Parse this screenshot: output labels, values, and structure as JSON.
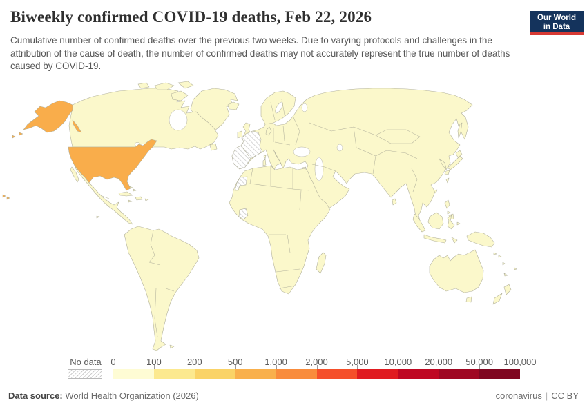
{
  "header": {
    "title": "Biweekly confirmed COVID-19 deaths, Feb 22, 2026",
    "subtitle": "Cumulative number of confirmed deaths over the previous two weeks. Due to varying protocols and challenges in the attribution of the cause of death, the number of confirmed deaths may not accurately represent the true number of deaths caused by COVID-19.",
    "logo": {
      "line1": "Our World",
      "line2": "in Data",
      "bg_color": "#14335c",
      "accent_color": "#d73a34"
    }
  },
  "legend": {
    "no_data_label": "No data",
    "ticks": [
      "0",
      "100",
      "200",
      "500",
      "1,000",
      "2,000",
      "5,000",
      "10,000",
      "20,000",
      "50,000",
      "100,000"
    ],
    "bin_colors": [
      "#fefcd4",
      "#fce98f",
      "#fad367",
      "#f9b04c",
      "#f98c3c",
      "#f54f2a",
      "#e01b20",
      "#bf0722",
      "#9f0722",
      "#7f0620"
    ]
  },
  "map": {
    "ocean_color": "#ffffff",
    "land_color": "#fbf8cb",
    "border_color": "#b2b19c",
    "us_color": "#f9ad4b",
    "no_data_fill": "#ffffff",
    "no_data_stripe": "#cccccc"
  },
  "footer": {
    "datasource_label": "Data source:",
    "datasource_value": "World Health Organization (2026)",
    "topic": "coronavirus",
    "separator": "|",
    "license": "CC BY"
  },
  "chart_data": {
    "type": "heatmap",
    "subtype": "choropleth world map",
    "title": "Biweekly confirmed COVID-19 deaths, Feb 22, 2026",
    "date": "Feb 22, 2026",
    "unit": "confirmed deaths over previous two weeks",
    "legend_position": "bottom",
    "scale": "log-like custom bins",
    "bins": [
      {
        "range": "0–100",
        "color": "#fefcd4"
      },
      {
        "range": "100–200",
        "color": "#fce98f"
      },
      {
        "range": "200–500",
        "color": "#fad367"
      },
      {
        "range": "500–1,000",
        "color": "#f9b04c"
      },
      {
        "range": "1,000–2,000",
        "color": "#f98c3c"
      },
      {
        "range": "2,000–5,000",
        "color": "#f54f2a"
      },
      {
        "range": "5,000–10,000",
        "color": "#e01b20"
      },
      {
        "range": "10,000–20,000",
        "color": "#bf0722"
      },
      {
        "range": "20,000–50,000",
        "color": "#9f0722"
      },
      {
        "range": "50,000–100,000",
        "color": "#7f0620"
      }
    ],
    "regions": [
      {
        "name": "United States (incl. Alaska and Hawaii)",
        "bin": "500–1,000"
      },
      {
        "name": "All other countries shown with data (Canada, Mexico, South America, Europe, Africa, Asia, Oceania)",
        "bin": "0–100"
      },
      {
        "name": "France",
        "bin": "No data"
      },
      {
        "name": "Spain and Portugal (Iberia)",
        "bin": "No data"
      },
      {
        "name": "Western Sahara",
        "bin": "No data"
      },
      {
        "name": "Côte d'Ivoire",
        "bin": "No data"
      }
    ]
  }
}
